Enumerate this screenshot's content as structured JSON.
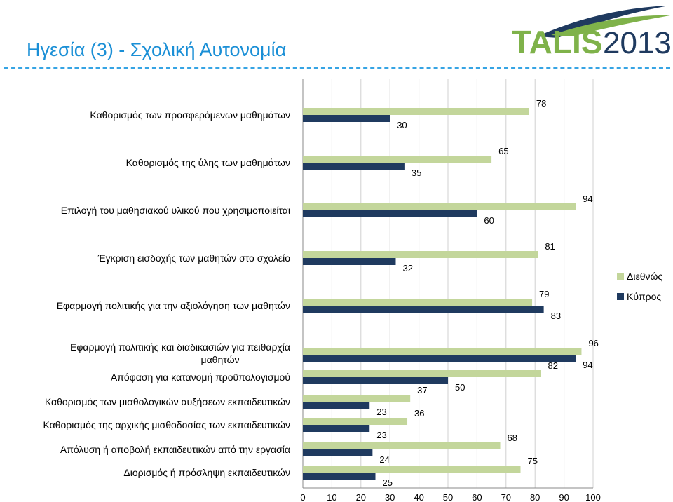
{
  "page": {
    "title": "Ηγεσία (3) - Σχολική Αυτονομία",
    "logo_text_1": "TALIS",
    "logo_text_2": "2013"
  },
  "colors": {
    "international": "#c3d69b",
    "cyprus": "#1f3a5f",
    "title": "#1a8fd6",
    "rule": "#36a4e4",
    "logo_dark": "#1f3a5f",
    "logo_green": "#7fb24a"
  },
  "chart_data": {
    "type": "bar",
    "orientation": "horizontal",
    "categories": [
      "Καθορισμός των προσφερόμενων μαθημάτων",
      "Καθορισμός της ύλης των μαθημάτων",
      "Επιλογή του μαθησιακού υλικού που χρησιμοποιείται",
      "Έγκριση εισδοχής των μαθητών  στο σχολείο",
      "Εφαρμογή πολιτικής για την αξιολόγηση των μαθητών",
      "Εφαρμογή πολιτικής και διαδικασιών για πειθαρχία μαθητών",
      "Απόφαση για κατανομή προϋπολογισμού",
      "Καθορισμός των μισθολογικών αυξήσεων εκπαιδευτικών",
      "Καθορισμός της αρχικής μισθοδοσίας των εκπαιδευτικών",
      "Απόλυση ή αποβολή εκπαιδευτικών από την εργασία",
      "Διορισμός ή πρόσληψη εκπαιδευτικών"
    ],
    "series": [
      {
        "name": "Διεθνώς",
        "values": [
          78,
          65,
          94,
          81,
          79,
          96,
          82,
          37,
          36,
          68,
          75
        ]
      },
      {
        "name": "Κύπρος",
        "values": [
          30,
          35,
          60,
          32,
          83,
          94,
          50,
          23,
          23,
          24,
          25
        ]
      }
    ],
    "xlim": [
      0,
      100
    ],
    "xticks": [
      0,
      10,
      20,
      30,
      40,
      50,
      60,
      70,
      80,
      90,
      100
    ],
    "grid": true,
    "legend_position": "right"
  }
}
